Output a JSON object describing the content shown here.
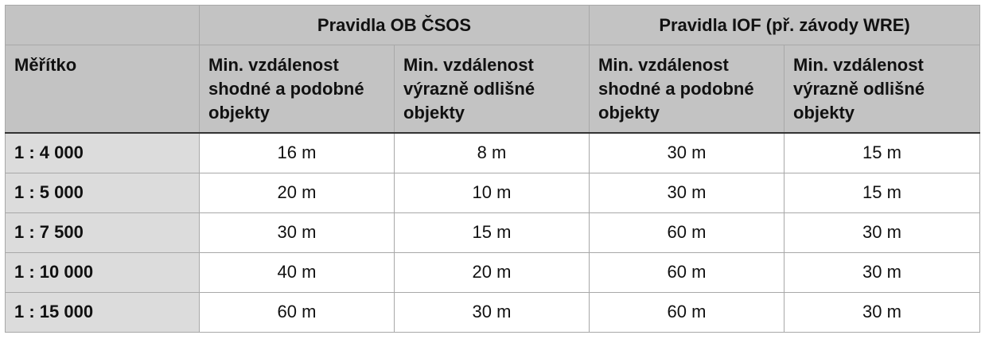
{
  "table": {
    "group_headers": [
      "Pravidla OB ČSOS",
      "Pravidla IOF (př. závody WRE)"
    ],
    "columns": [
      "Měřítko",
      "Min. vzdálenost shodné a podobné objekty",
      "Min. vzdálenost výrazně odlišné objekty",
      "Min. vzdálenost shodné a podobné objekty",
      "Min. vzdálenost výrazně odlišné objekty"
    ],
    "rows": [
      [
        "1 : 4 000",
        "16 m",
        "8 m",
        "30 m",
        "15 m"
      ],
      [
        "1 : 5 000",
        "20 m",
        "10 m",
        "30 m",
        "15 m"
      ],
      [
        "1 : 7 500",
        "30 m",
        "15 m",
        "60 m",
        "30 m"
      ],
      [
        "1 : 10 000",
        "40 m",
        "20 m",
        "60 m",
        "30 m"
      ],
      [
        "1 : 15 000",
        "60 m",
        "30 m",
        "60 m",
        "30 m"
      ]
    ]
  }
}
